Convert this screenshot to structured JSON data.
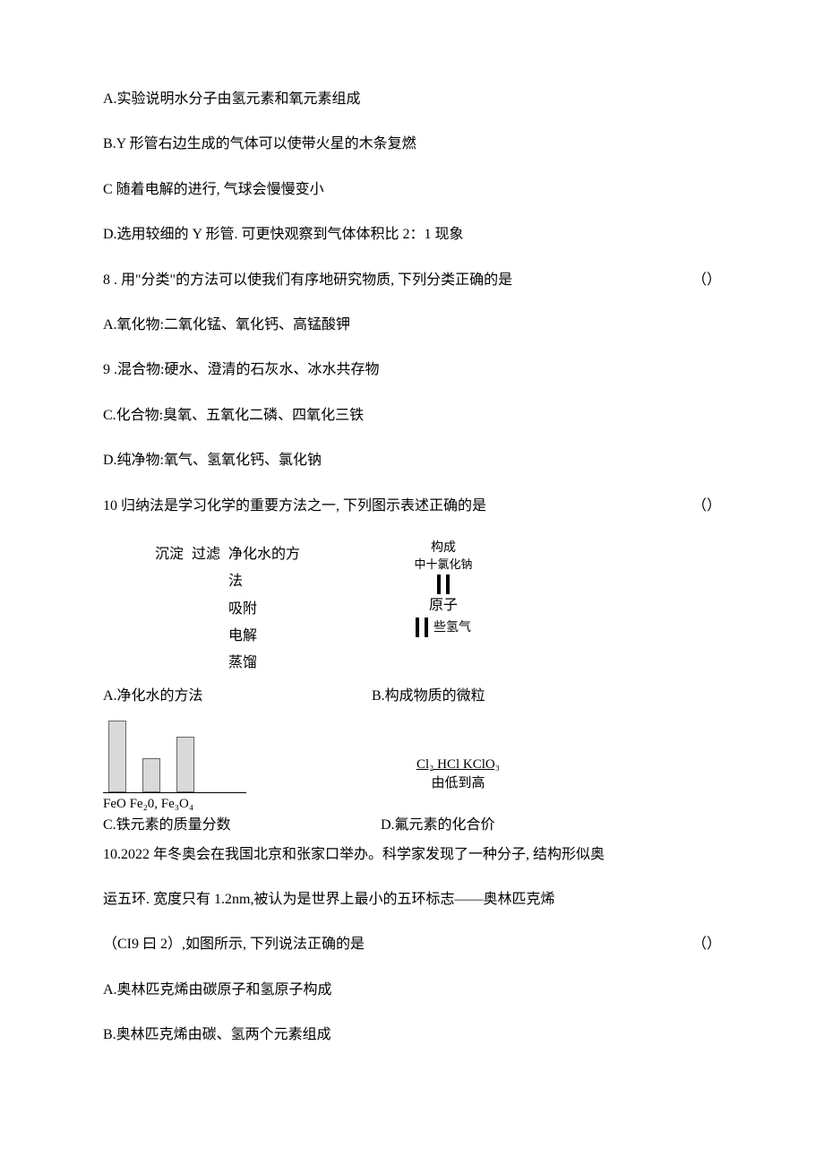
{
  "q7": {
    "a": "A.实验说明水分子由氢元素和氧元素组成",
    "b": "B.Y 形管右边生成的气体可以使带火星的木条复燃",
    "c": "C 随着电解的进行, 气球会慢慢变小",
    "d": "D.选用较细的 Y 形管. 可更快观察到气体体积比 2：1 现象"
  },
  "q8": {
    "stem": "8 . 用\"分类\"的方法可以使我们有序地研究物质, 下列分类正确的是",
    "paren": "（）",
    "a": "A.氧化物:二氧化锰、氧化钙、高锰酸钾",
    "b_num": "9 .混合物:硬水、澄清的石灰水、冰水共存物",
    "c": "C.化合物:臭氧、五氧化二磷、四氧化三铁",
    "d": "D.纯净物:氧气、氢氧化钙、氯化钠"
  },
  "q10a": {
    "stem": "10 归纳法是学习化学的重要方法之一, 下列图示表述正确的是",
    "paren": "（）",
    "boxA": {
      "methods": [
        "沉淀",
        "过滤",
        "吸附",
        "电解",
        "蒸馏"
      ],
      "title": "净化水的方法"
    },
    "boxB": {
      "top": "构成",
      "sub": "中十氯化钠",
      "mid": "原子",
      "right": "些氢气"
    },
    "labelA": "A.净化水的方法",
    "labelB": "B.构成物质的微粒",
    "barchart": {
      "values": [
        80,
        38,
        62
      ],
      "xlabels": "FeO Fe₂0, Fe₃O₄",
      "bar_color": "#d9d9d9",
      "border_color": "#666666"
    },
    "boxD": {
      "line1": "Cl₂ HCl KClO₃",
      "line2": "由低到高"
    },
    "labelC": "C.铁元素的质量分数",
    "labelD": "D.氟元素的化合价"
  },
  "q10b": {
    "line1": "10.2022 年冬奥会在我国北京和张家口举办。科学家发现了一种分子, 结构形似奥",
    "line2": "运五环. 宽度只有 1.2nm,被认为是世界上最小的五环标志——奥林匹克烯",
    "line3": "（CI9 曰 2）,如图所示, 下列说法正确的是",
    "paren": "（）",
    "a": "A.奥林匹克烯由碳原子和氢原子构成",
    "b": "B.奥林匹克烯由碳、氢两个元素组成"
  }
}
